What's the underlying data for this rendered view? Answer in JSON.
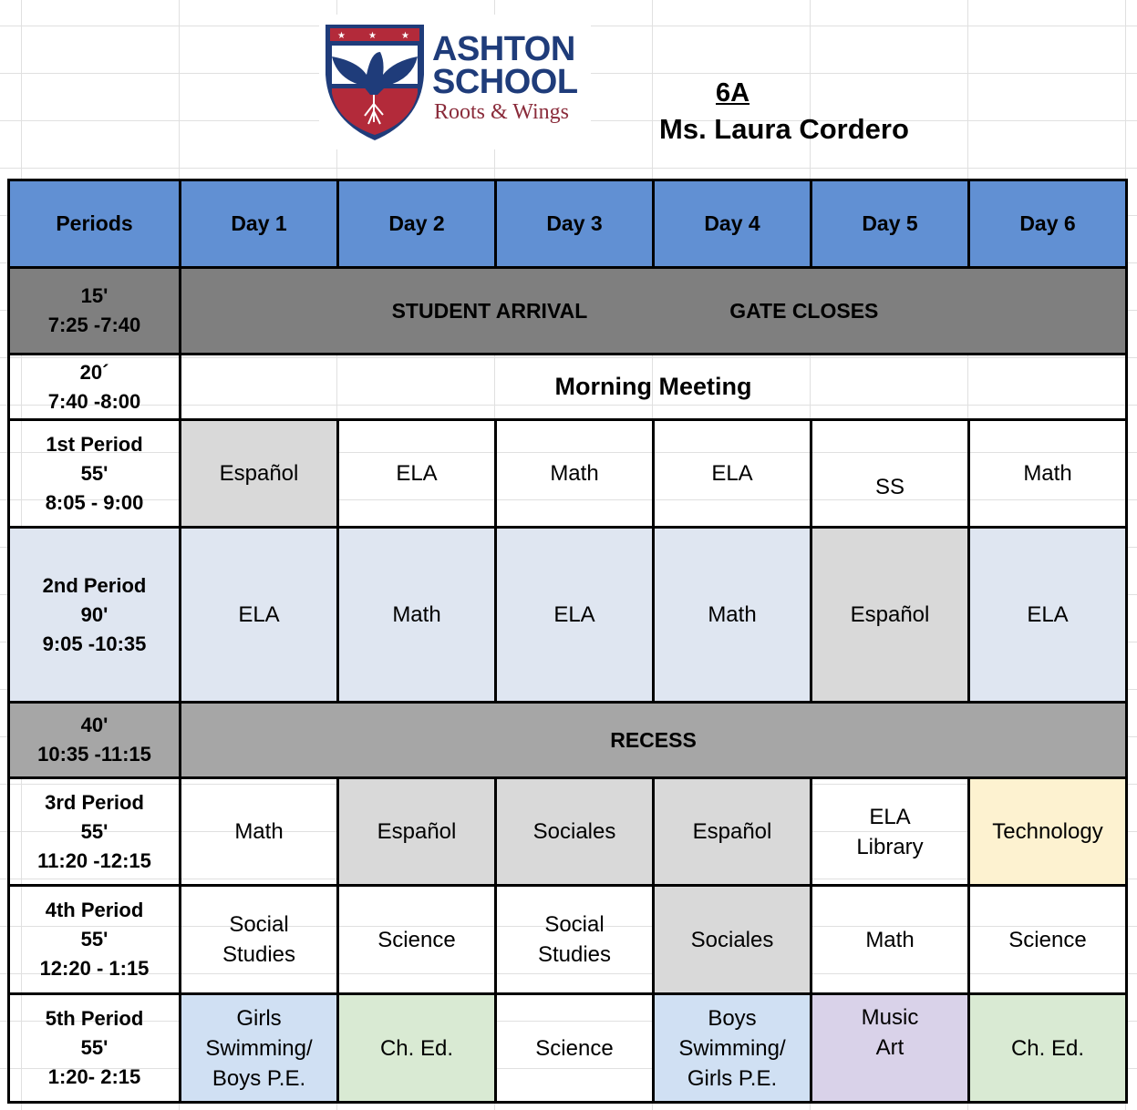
{
  "header": {
    "logo_line1": "ASHTON",
    "logo_line2": "SCHOOL",
    "logo_tagline": "Roots & Wings",
    "class_name": "6A",
    "teacher": "Ms. Laura Cordero"
  },
  "colors": {
    "header_blue": "#6190d3",
    "arrival_gray": "#7f7f7f",
    "recess_gray": "#a6a6a6",
    "light_blue": "#dfe6f1",
    "light_gray": "#d9d9d9",
    "yellow": "#fdf2d0",
    "blue": "#d0e0f3",
    "green": "#d9ead3",
    "purple": "#d9d2e9",
    "logo_navy": "#1f3c7a",
    "logo_red": "#b32a3a"
  },
  "columns": [
    "Periods",
    "Day 1",
    "Day 2",
    "Day 3",
    "Day 4",
    "Day 5",
    "Day 6"
  ],
  "arrival": {
    "period": [
      "15'",
      "7:25 -7:40"
    ],
    "text1": "STUDENT ARRIVAL",
    "text2": "GATE CLOSES"
  },
  "meeting": {
    "period": [
      "20´",
      "7:40 -8:00"
    ],
    "text": "Morning Meeting"
  },
  "recess": {
    "period": [
      "40'",
      "10:35 -11:15"
    ],
    "text": "RECESS"
  },
  "rows": [
    {
      "period": [
        "1st Period",
        "55'",
        "8:05 - 9:00"
      ],
      "cells": [
        "Español",
        "ELA",
        "Math",
        "ELA",
        "SS",
        "Math"
      ]
    },
    {
      "period": [
        "2nd Period",
        "90'",
        "9:05 -10:35"
      ],
      "cells": [
        "ELA",
        "Math",
        "ELA",
        "Math",
        "Español",
        "ELA"
      ]
    },
    {
      "period": [
        "3rd Period",
        "55'",
        "11:20 -12:15"
      ],
      "cells": [
        "Math",
        "Español",
        "Sociales",
        "Español",
        "ELA\nLibrary",
        "Technology"
      ]
    },
    {
      "period": [
        "4th Period",
        "55'",
        "12:20 - 1:15"
      ],
      "cells": [
        "Social\nStudies",
        "Science",
        "Social\nStudies",
        "Sociales",
        "Math",
        "Science"
      ]
    },
    {
      "period": [
        "5th Period",
        "55'",
        "1:20- 2:15"
      ],
      "cells": [
        "Girls\nSwimming/\nBoys P.E.",
        "Ch. Ed.",
        "Science",
        "Boys\nSwimming/\nGirls P.E.",
        "Music\nArt",
        "Ch. Ed."
      ]
    }
  ]
}
